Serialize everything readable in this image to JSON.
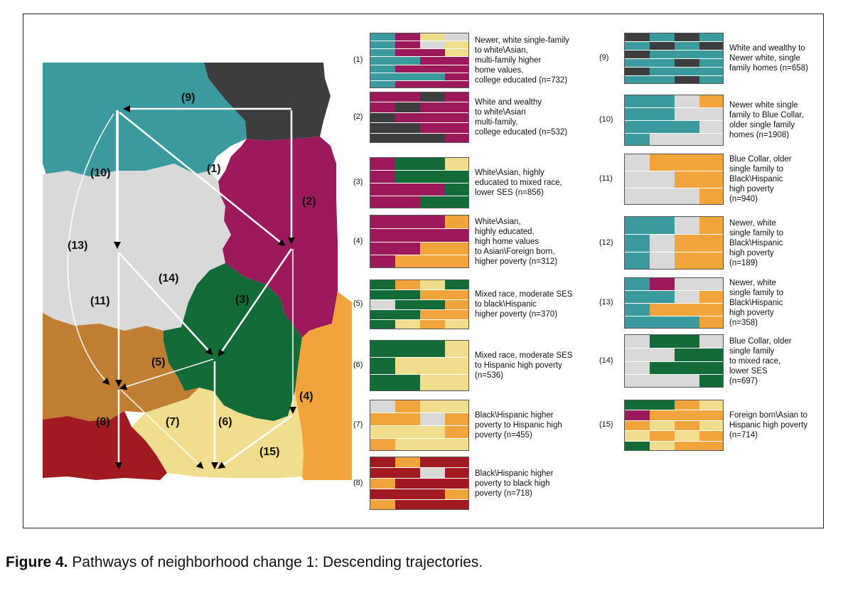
{
  "colors": {
    "teal": "#3a9a9e",
    "dark_gray": "#3d3d3f",
    "magenta": "#9c1a5c",
    "light_gray": "#d9d9d9",
    "dark_green": "#136b38",
    "brown": "#c07e33",
    "light_yellow": "#f1dd8e",
    "orange": "#f1a33c",
    "dark_red": "#a11a22"
  },
  "map": {
    "path_labels": [
      "(9)",
      "(10)",
      "(1)",
      "(2)",
      "(13)",
      "(14)",
      "(3)",
      "(11)",
      "(5)",
      "(4)",
      "(8)",
      "(7)",
      "(6)",
      "(15)"
    ]
  },
  "sequences": [
    {
      "num": "(1)",
      "desc": [
        "Newer, white single-family",
        "to white\\Asian,",
        "multi-family higher",
        "home values,",
        "college educated (n=732)"
      ]
    },
    {
      "num": "(2)",
      "desc": [
        "White and wealthy",
        "to white\\Asian",
        "multi-family,",
        "college educated (n=532)"
      ]
    },
    {
      "num": "(3)",
      "desc": [
        "White\\Asian, highly",
        "educated to mixed race,",
        "lower SES (n=856)"
      ]
    },
    {
      "num": "(4)",
      "desc": [
        "White\\Asian,",
        "highly educated,",
        "high home values",
        "to Asian\\Foreign born,",
        "higher poverty (n=312)"
      ]
    },
    {
      "num": "(5)",
      "desc": [
        "Mixed race, moderate SES",
        "to black\\Hispanic",
        "higher poverty (n=370)"
      ]
    },
    {
      "num": "(6)",
      "desc": [
        "Mixed race, moderate SES",
        "to Hispanic high poverty",
        "(n=536)"
      ]
    },
    {
      "num": "(7)",
      "desc": [
        "Black\\Hispanic higher",
        "poverty to Hispanic high",
        "poverty (n=455)"
      ]
    },
    {
      "num": "(8)",
      "desc": [
        "Black\\Hispanic higher",
        "poverty to black high",
        "poverty (n=718)"
      ]
    },
    {
      "num": "(9)",
      "desc": [
        "White and wealthy to",
        "Newer white, single",
        "family homes (n=658)"
      ]
    },
    {
      "num": "(10)",
      "desc": [
        "Newer white single",
        "family to Blue Collar,",
        "older single family",
        "homes (n=1908)"
      ]
    },
    {
      "num": "(11)",
      "desc": [
        "Blue Collar, older",
        "single family to",
        "Black\\Hispanic",
        "high poverty",
        "(n=940)"
      ]
    },
    {
      "num": "(12)",
      "desc": [
        "Newer, white",
        "single family to",
        "Black\\Hispanic",
        "high poverty",
        "(n=189)"
      ]
    },
    {
      "num": "(13)",
      "desc": [
        "Newer, white",
        "single family to",
        "Black\\Hispanic",
        "high poverty",
        "(n=358)"
      ]
    },
    {
      "num": "(14)",
      "desc": [
        "Blue Collar, older",
        "single family",
        "to mixed race,",
        "lower SES",
        "(n=697)"
      ]
    },
    {
      "num": "(15)",
      "desc": [
        "Foreign born\\Asian to",
        "Hispanic high poverty",
        "(n=714)"
      ]
    }
  ],
  "caption": {
    "label": "Figure 4.",
    "text": "Pathways of neighborhood change 1: Descending trajectories."
  }
}
